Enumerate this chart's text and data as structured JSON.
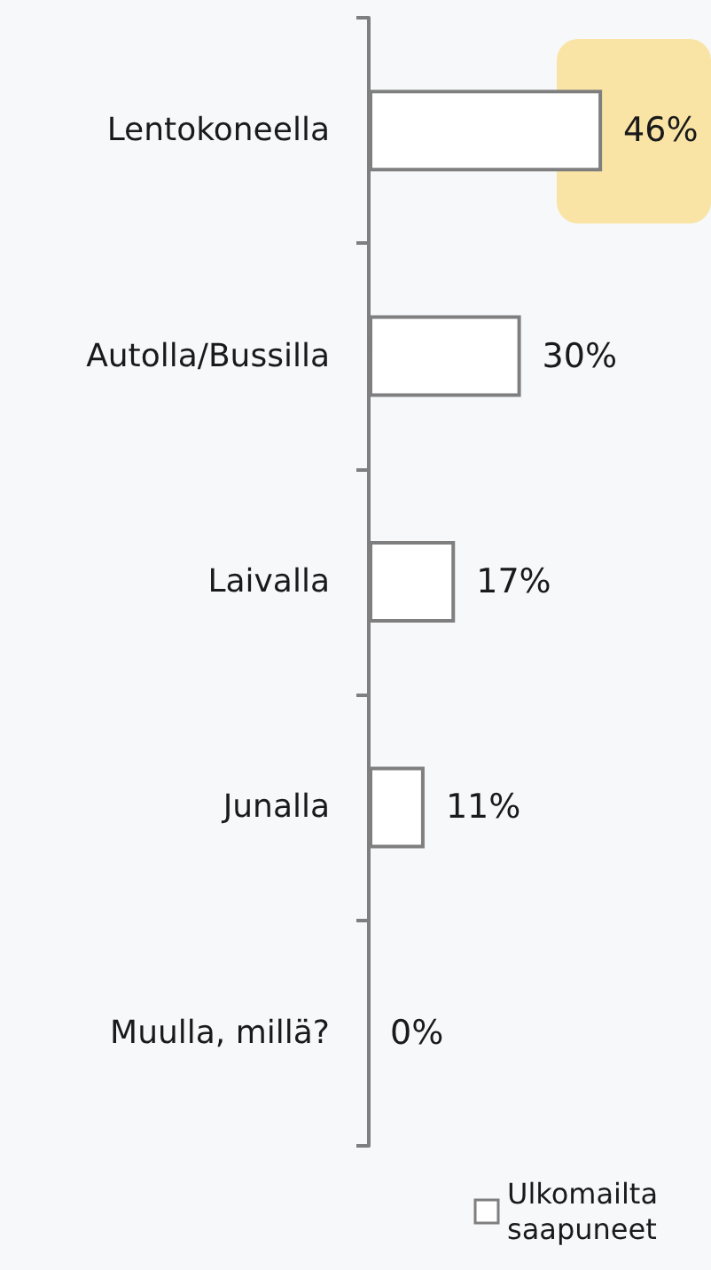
{
  "chart_data": {
    "type": "bar",
    "orientation": "horizontal",
    "categories": [
      "Lentokoneella",
      "Autolla/Bussilla",
      "Laivalla",
      "Junalla",
      "Muulla, millä?"
    ],
    "series": [
      {
        "name": "Ulkomailta saapuneet",
        "color": "#ffffff",
        "values": [
          46,
          30,
          17,
          11,
          0
        ],
        "value_labels": [
          "46%",
          "30%",
          "17%",
          "11%",
          "0%"
        ]
      }
    ],
    "tick_labels": "y",
    "legend": "bottom right"
  }
}
